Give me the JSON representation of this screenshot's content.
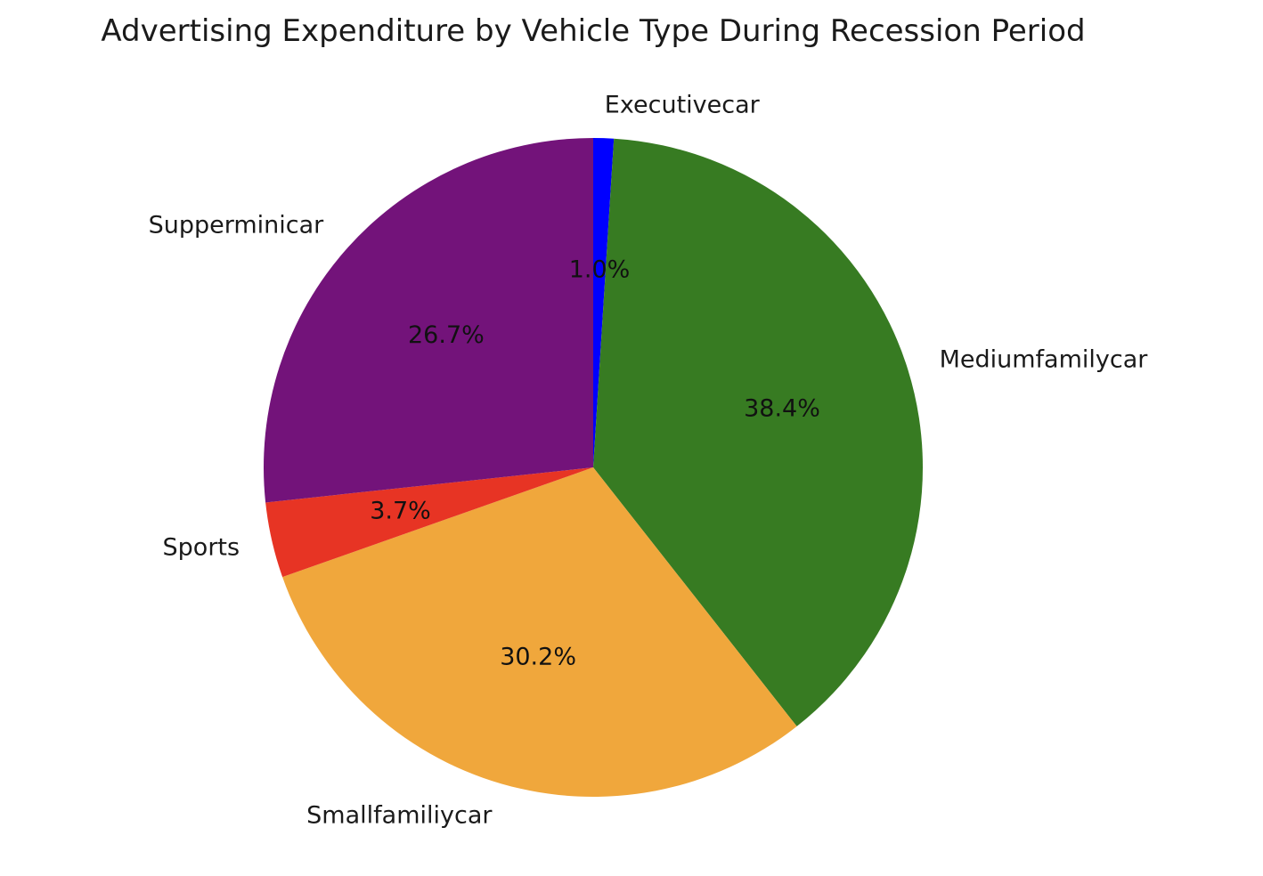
{
  "chart_data": {
    "type": "pie",
    "title": "Advertising Expenditure by Vehicle Type During Recession Period",
    "start_angle_deg": 90,
    "direction": "clockwise",
    "slices": [
      {
        "label": "Executivecar",
        "value": 1.0,
        "pct_label": "1.0%",
        "color": "#0000ff"
      },
      {
        "label": "Mediumfamilycar",
        "value": 38.4,
        "pct_label": "38.4%",
        "color": "#377b22"
      },
      {
        "label": "Smallfamiliycar",
        "value": 30.2,
        "pct_label": "30.2%",
        "color": "#f0a73c"
      },
      {
        "label": "Sports",
        "value": 3.7,
        "pct_label": "3.7%",
        "color": "#e73424"
      },
      {
        "label": "Supperminicar",
        "value": 26.7,
        "pct_label": "26.7%",
        "color": "#73137a"
      }
    ]
  }
}
